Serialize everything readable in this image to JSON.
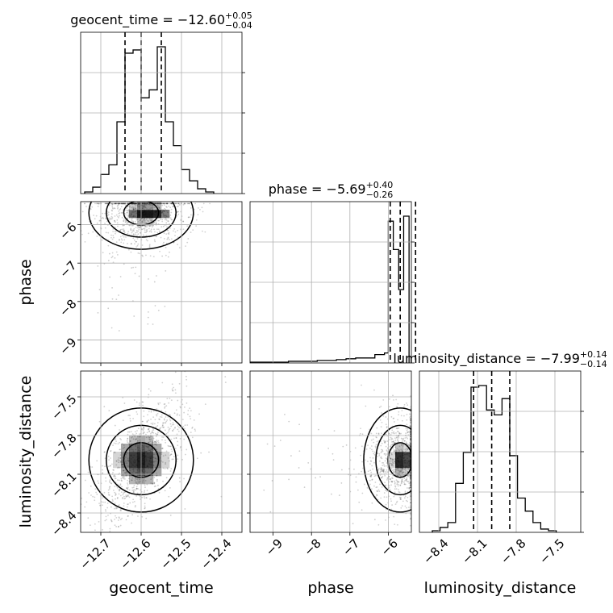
{
  "chart_data": {
    "type": "corner",
    "parameters": [
      "geocent_time",
      "phase",
      "luminosity_distance"
    ],
    "axis_labels": {
      "x": [
        "geocent_time",
        "phase",
        "luminosity_distance"
      ],
      "y": [
        "phase",
        "luminosity_distance"
      ]
    },
    "ranges": {
      "geocent_time": [
        -12.75,
        -12.35
      ],
      "phase": [
        -9.6,
        -5.4
      ],
      "luminosity_distance": [
        -8.55,
        -7.3
      ]
    },
    "ticks": {
      "geocent_time": {
        "values": [
          -12.7,
          -12.6,
          -12.5,
          -12.4
        ],
        "labels": [
          "−12.7",
          "−12.6",
          "−12.5",
          "−12.4"
        ]
      },
      "phase": {
        "values": [
          -9,
          -8,
          -7,
          -6
        ],
        "labels": [
          "−9",
          "−8",
          "−7",
          "−6"
        ]
      },
      "luminosity_distance": {
        "values": [
          -8.4,
          -8.1,
          -7.8,
          -7.5
        ],
        "labels": [
          "−8.4",
          "−8.1",
          "−7.8",
          "−7.5"
        ]
      }
    },
    "titles": [
      {
        "label": "geocent_time",
        "eq": " = ",
        "value": "−12.60",
        "plus": "+0.05",
        "minus": "−0.04"
      },
      {
        "label": "phase",
        "eq": " = ",
        "value": "−5.69",
        "plus": "+0.40",
        "minus": "−0.26"
      },
      {
        "label": "luminosity_distance",
        "eq": " = ",
        "value": "−7.99",
        "plus": "+0.14",
        "minus": "−0.14"
      }
    ],
    "quantiles": {
      "geocent_time": [
        -12.64,
        -12.6,
        -12.55
      ],
      "phase": [
        -5.95,
        -5.69,
        -5.29
      ],
      "luminosity_distance": [
        -8.13,
        -7.99,
        -7.85
      ]
    },
    "histograms": {
      "geocent_time": {
        "edges": [
          -12.74,
          -12.72,
          -12.7,
          -12.68,
          -12.66,
          -12.64,
          -12.62,
          -12.6,
          -12.58,
          -12.56,
          -12.54,
          -12.52,
          -12.5,
          -12.48,
          -12.46,
          -12.44,
          -12.42
        ],
        "counts": [
          1,
          4,
          12,
          18,
          45,
          88,
          90,
          60,
          65,
          92,
          45,
          30,
          15,
          8,
          3,
          1
        ]
      },
      "phase": {
        "edges": [
          -9.6,
          -9.35,
          -9.1,
          -8.85,
          -8.6,
          -8.35,
          -8.1,
          -7.85,
          -7.6,
          -7.35,
          -7.1,
          -6.85,
          -6.6,
          -6.35,
          -6.1,
          -6.0,
          -5.87,
          -5.73,
          -5.6,
          -5.46
        ],
        "counts": [
          0.5,
          0.5,
          0.5,
          0.5,
          1,
          1,
          1,
          1.5,
          1.5,
          2,
          2.5,
          3,
          3,
          5,
          6,
          85,
          68,
          44,
          88
        ]
      },
      "luminosity_distance": {
        "edges": [
          -8.45,
          -8.39,
          -8.33,
          -8.27,
          -8.21,
          -8.15,
          -8.09,
          -8.03,
          -7.97,
          -7.91,
          -7.85,
          -7.79,
          -7.73,
          -7.67,
          -7.61,
          -7.55,
          -7.49
        ],
        "counts": [
          1,
          3,
          6,
          30,
          49,
          89,
          90,
          75,
          72,
          82,
          47,
          21,
          13,
          6,
          2,
          1
        ]
      }
    },
    "grid": true
  }
}
